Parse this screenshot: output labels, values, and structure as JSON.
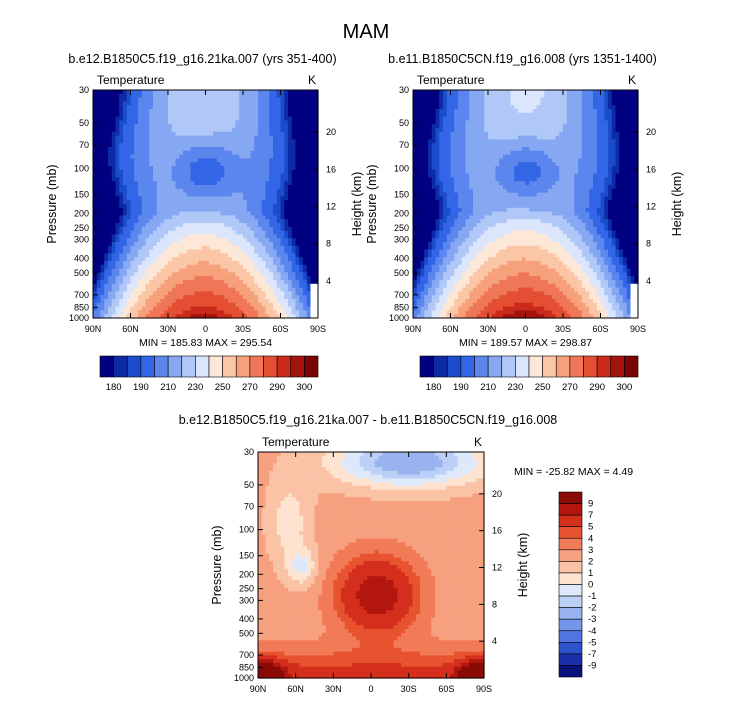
{
  "figure": {
    "main_title": "MAM"
  },
  "chart_data": [
    {
      "type": "heatmap",
      "id": "left",
      "title": "b.e12.B1850C5.f19_g16.21ka.007 (yrs 351-400)",
      "left_label": "Temperature",
      "right_label": "K",
      "xlabel": "",
      "ylabel": "Pressure (mb)",
      "y2label": "Height (km)",
      "x_ticks": [
        "90N",
        "60N",
        "30N",
        "0",
        "30S",
        "60S",
        "90S"
      ],
      "y_ticks": [
        "30",
        "50",
        "70",
        "100",
        "150",
        "200",
        "250",
        "300",
        "400",
        "500",
        "700",
        "850",
        "1000"
      ],
      "y2_ticks": [
        "20",
        "16",
        "12",
        "8",
        "4"
      ],
      "ylim": [
        1000,
        30
      ],
      "min_max_text": "MIN = 185.83   MAX = 295.54",
      "min": 185.83,
      "max": 295.54,
      "colorbar": {
        "orientation": "horizontal",
        "labels": [
          "180",
          "190",
          "210",
          "230",
          "250",
          "270",
          "290",
          "300"
        ],
        "colors": [
          "#000080",
          "#0d2ba6",
          "#1a4ccc",
          "#3366e6",
          "#5a86ee",
          "#86a8f3",
          "#b0c8f8",
          "#dbe6fc",
          "#fde7d6",
          "#fbc6a6",
          "#f6a07c",
          "#ef7758",
          "#e44f33",
          "#c92a1c",
          "#a3140e",
          "#7a0403"
        ]
      }
    },
    {
      "type": "heatmap",
      "id": "right",
      "title": "b.e11.B1850C5CN.f19_g16.008 (yrs 1351-1400)",
      "left_label": "Temperature",
      "right_label": "K",
      "xlabel": "",
      "ylabel": "Pressure (mb)",
      "y2label": "Height (km)",
      "x_ticks": [
        "90N",
        "60N",
        "30N",
        "0",
        "30S",
        "60S",
        "90S"
      ],
      "y_ticks": [
        "30",
        "50",
        "70",
        "100",
        "150",
        "200",
        "250",
        "300",
        "400",
        "500",
        "700",
        "850",
        "1000"
      ],
      "y2_ticks": [
        "20",
        "16",
        "12",
        "8",
        "4"
      ],
      "ylim": [
        1000,
        30
      ],
      "min_max_text": "MIN = 189.57   MAX = 298.87",
      "min": 189.57,
      "max": 298.87,
      "colorbar": {
        "orientation": "horizontal",
        "labels": [
          "180",
          "190",
          "210",
          "230",
          "250",
          "270",
          "290",
          "300"
        ],
        "colors": [
          "#000080",
          "#0d2ba6",
          "#1a4ccc",
          "#3366e6",
          "#5a86ee",
          "#86a8f3",
          "#b0c8f8",
          "#dbe6fc",
          "#fde7d6",
          "#fbc6a6",
          "#f6a07c",
          "#ef7758",
          "#e44f33",
          "#c92a1c",
          "#a3140e",
          "#7a0403"
        ]
      }
    },
    {
      "type": "heatmap",
      "id": "diff",
      "title": "b.e12.B1850C5.f19_g16.21ka.007 - b.e11.B1850C5CN.f19_g16.008",
      "left_label": "Temperature",
      "right_label": "K",
      "xlabel": "",
      "ylabel": "Pressure (mb)",
      "y2label": "Height (km)",
      "x_ticks": [
        "90N",
        "60N",
        "30N",
        "0",
        "30S",
        "60S",
        "90S"
      ],
      "y_ticks": [
        "30",
        "50",
        "70",
        "100",
        "150",
        "200",
        "250",
        "300",
        "400",
        "500",
        "700",
        "850",
        "1000"
      ],
      "y2_ticks": [
        "20",
        "16",
        "12",
        "8",
        "4"
      ],
      "ylim": [
        1000,
        30
      ],
      "min_max_text": "MIN = -25.82   MAX =   4.49",
      "min": -25.82,
      "max": 4.49,
      "colorbar": {
        "orientation": "vertical",
        "labels": [
          "9",
          "7",
          "5",
          "4",
          "3",
          "2",
          "1",
          "0",
          "-1",
          "-2",
          "-3",
          "-4",
          "-5",
          "-7",
          "-9"
        ],
        "colors": [
          "#8a0a06",
          "#b2160e",
          "#d42e1c",
          "#e8532f",
          "#f27b57",
          "#f7a07f",
          "#fac3a6",
          "#fde3d0",
          "#dde8fb",
          "#bccff6",
          "#98b3f0",
          "#7396ea",
          "#4f76e0",
          "#2e52cc",
          "#1a2fa8",
          "#08127a"
        ]
      }
    }
  ]
}
